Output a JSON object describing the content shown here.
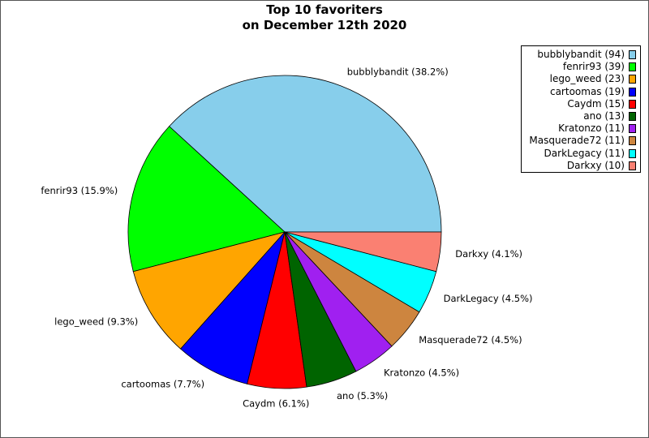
{
  "chart_data": {
    "type": "pie",
    "title": "Top 10 favoriters",
    "subtitle": "on December 12th 2020",
    "legend_position": "top-right",
    "slices": [
      {
        "label": "bubblybandit",
        "value": 94,
        "percent": "38.2%",
        "color": "#87ceeb"
      },
      {
        "label": "fenrir93",
        "value": 39,
        "percent": "15.9%",
        "color": "#00ff00"
      },
      {
        "label": "lego_weed",
        "value": 23,
        "percent": "9.3%",
        "color": "#ffa500"
      },
      {
        "label": "cartoomas",
        "value": 19,
        "percent": "7.7%",
        "color": "#0000ff"
      },
      {
        "label": "Caydm",
        "value": 15,
        "percent": "6.1%",
        "color": "#ff0000"
      },
      {
        "label": "ano",
        "value": 13,
        "percent": "5.3%",
        "color": "#006400"
      },
      {
        "label": "Kratonzo",
        "value": 11,
        "percent": "4.5%",
        "color": "#a020f0"
      },
      {
        "label": "Masquerade72",
        "value": 11,
        "percent": "4.5%",
        "color": "#cd853f"
      },
      {
        "label": "DarkLegacy",
        "value": 11,
        "percent": "4.5%",
        "color": "#00ffff"
      },
      {
        "label": "Darkxy",
        "value": 10,
        "percent": "4.1%",
        "color": "#fa8072"
      }
    ]
  }
}
